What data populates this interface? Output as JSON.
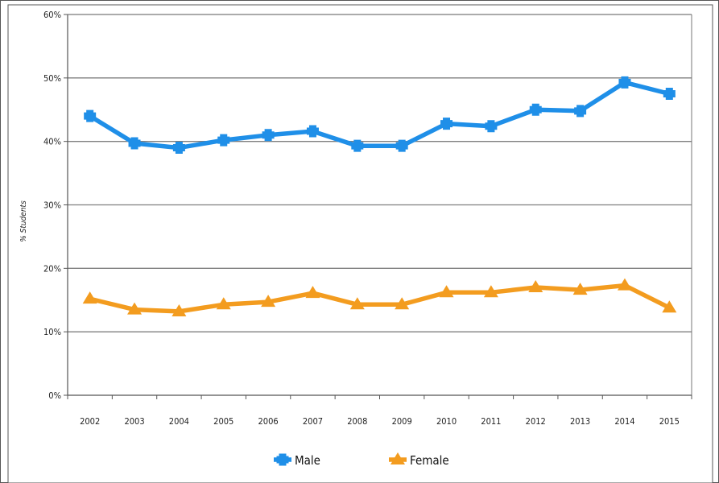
{
  "chart_data": {
    "type": "line",
    "title": "",
    "xlabel": "",
    "ylabel": "% Students",
    "categories": [
      "2002",
      "2003",
      "2004",
      "2005",
      "2006",
      "2007",
      "2008",
      "2009",
      "2010",
      "2011",
      "2012",
      "2013",
      "2014",
      "2015"
    ],
    "y_ticks": [
      "0%",
      "10%",
      "20%",
      "30%",
      "40%",
      "50%",
      "60%"
    ],
    "ylim": [
      0,
      60
    ],
    "grid": true,
    "legend_position": "bottom",
    "series": [
      {
        "name": "Male",
        "color": "#1f8fe8",
        "marker": "plus",
        "values": [
          44,
          39.7,
          39,
          40.2,
          41,
          41.6,
          39.3,
          39.3,
          42.8,
          42.4,
          45,
          44.8,
          49.3,
          47.5
        ]
      },
      {
        "name": "Female",
        "color": "#f39c1f",
        "marker": "triangle",
        "values": [
          15.2,
          13.5,
          13.2,
          14.3,
          14.7,
          16.1,
          14.3,
          14.3,
          16.2,
          16.2,
          17,
          16.6,
          17.3,
          13.8
        ]
      }
    ]
  }
}
